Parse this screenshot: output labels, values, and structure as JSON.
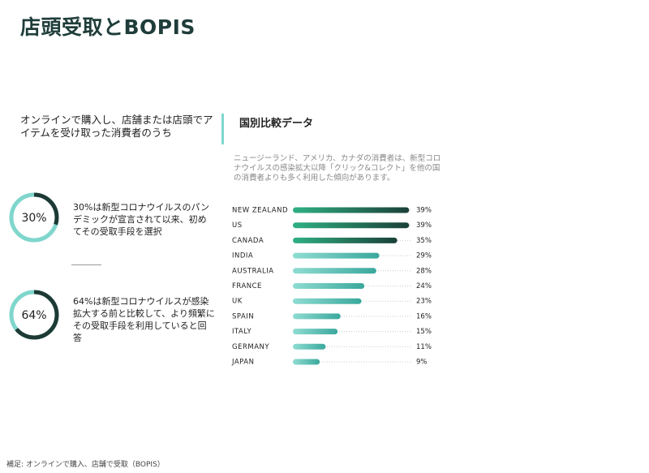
{
  "title": "店頭受取とBOPIS",
  "intro": "オンラインで購入し、店舗または店頭でアイテムを受け取った消費者のうち",
  "stats": [
    {
      "value": 30,
      "value_label": "30%",
      "text": "30%は新型コロナウイルスのパンデミックが宣言されて以来、初めてその受取手段を選択"
    },
    {
      "value": 64,
      "value_label": "64%",
      "text": "64%は新型コロナウイルスが感染拡大する前と比較して、より頻繁にその受取手段を利用していると回答"
    }
  ],
  "chart_data": {
    "type": "bar",
    "orientation": "horizontal",
    "title": "国別比較データ",
    "subtitle": "ニュージーランド、アメリカ、カナダの消費者は、新型コロナウイルスの感染拡大以降「クリック&コレクト」を他の国の消費者よりも多く利用した傾向があります。",
    "categories": [
      "NEW ZEALAND",
      "US",
      "CANADA",
      "INDIA",
      "AUSTRALIA",
      "FRANCE",
      "UK",
      "SPAIN",
      "ITALY",
      "GERMANY",
      "JAPAN"
    ],
    "values": [
      39,
      39,
      35,
      29,
      28,
      24,
      23,
      16,
      15,
      11,
      9
    ],
    "value_labels": [
      "39%",
      "39%",
      "35%",
      "29%",
      "28%",
      "24%",
      "23%",
      "16%",
      "15%",
      "11%",
      "9%"
    ],
    "colors": [
      "#1f5a48",
      "#1f5a48",
      "#2a8a68",
      "#3aa89c",
      "#3aa89c",
      "#3aa89c",
      "#3aa89c",
      "#3aa89c",
      "#3aa89c",
      "#3aa89c",
      "#3aa89c"
    ],
    "xlim": [
      0,
      40
    ]
  },
  "footnote": "補足: オンラインで購入、店舗で受取（BOPIS）"
}
